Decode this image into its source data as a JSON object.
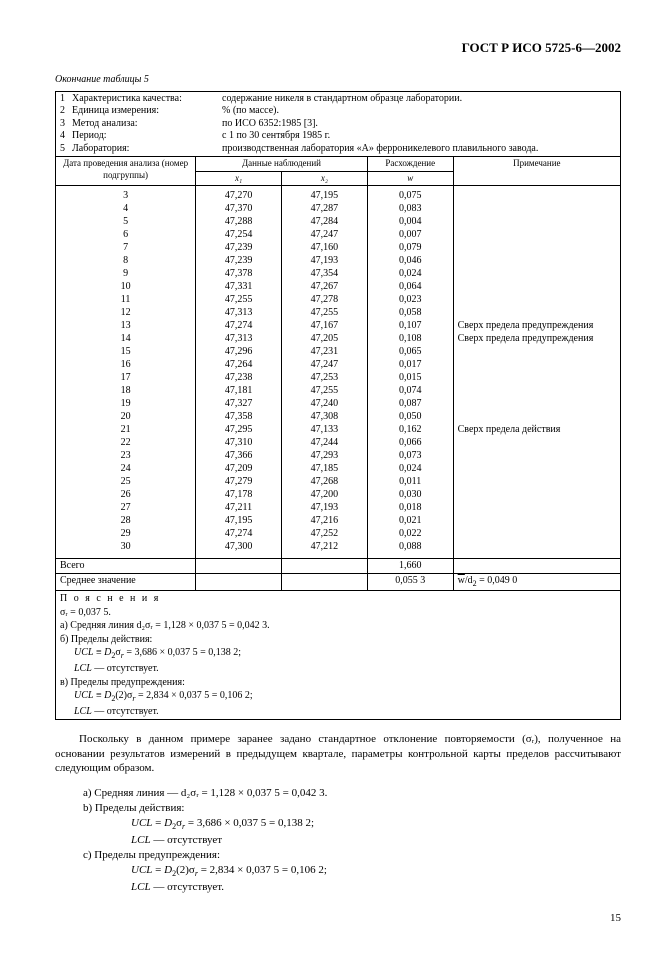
{
  "doc": {
    "header": "ГОСТ Р ИСО 5725-6—2002",
    "caption": "Окончание таблицы 5",
    "page_number": "15"
  },
  "info": {
    "n1": "1",
    "l1": "Характеристика качества:",
    "v1": "содержание никеля в стандартном образце лаборатории.",
    "n2": "2",
    "l2": "Единица измерения:",
    "v2": "% (по массе).",
    "n3": "3",
    "l3": "Метод анализа:",
    "v3": "по ИСО 6352:1985 [3].",
    "n4": "4",
    "l4": "Период:",
    "v4": "с 1 по 30 сентября 1985 г.",
    "n5": "5",
    "l5": "Лаборатория:",
    "v5": "производственная лаборатория «А» ферроникелевого плавильного завода."
  },
  "header_row": {
    "c1": "Дата проведения анализа (номер подгруппы)",
    "c2": "Данные наблюдений",
    "c2a": "x₁",
    "c2b": "x₂",
    "c3": "Расхождение",
    "c3a": "w",
    "c4": "Примечание"
  },
  "rows": [
    {
      "n": "3",
      "x1": "47,270",
      "x2": "47,195",
      "w": "0,075",
      "note": ""
    },
    {
      "n": "4",
      "x1": "47,370",
      "x2": "47,287",
      "w": "0,083",
      "note": ""
    },
    {
      "n": "5",
      "x1": "47,288",
      "x2": "47,284",
      "w": "0,004",
      "note": ""
    },
    {
      "n": "6",
      "x1": "47,254",
      "x2": "47,247",
      "w": "0,007",
      "note": ""
    },
    {
      "n": "7",
      "x1": "47,239",
      "x2": "47,160",
      "w": "0,079",
      "note": ""
    },
    {
      "n": "8",
      "x1": "47,239",
      "x2": "47,193",
      "w": "0,046",
      "note": ""
    },
    {
      "n": "9",
      "x1": "47,378",
      "x2": "47,354",
      "w": "0,024",
      "note": ""
    },
    {
      "n": "10",
      "x1": "47,331",
      "x2": "47,267",
      "w": "0,064",
      "note": ""
    },
    {
      "n": "11",
      "x1": "47,255",
      "x2": "47,278",
      "w": "0,023",
      "note": ""
    },
    {
      "n": "12",
      "x1": "47,313",
      "x2": "47,255",
      "w": "0,058",
      "note": ""
    },
    {
      "n": "13",
      "x1": "47,274",
      "x2": "47,167",
      "w": "0,107",
      "note": "Сверх предела предупреждения"
    },
    {
      "n": "14",
      "x1": "47,313",
      "x2": "47,205",
      "w": "0,108",
      "note": "Сверх предела предупреждения"
    },
    {
      "n": "15",
      "x1": "47,296",
      "x2": "47,231",
      "w": "0,065",
      "note": ""
    },
    {
      "n": "16",
      "x1": "47,264",
      "x2": "47,247",
      "w": "0,017",
      "note": ""
    },
    {
      "n": "17",
      "x1": "47,238",
      "x2": "47,253",
      "w": "0,015",
      "note": ""
    },
    {
      "n": "18",
      "x1": "47,181",
      "x2": "47,255",
      "w": "0,074",
      "note": ""
    },
    {
      "n": "19",
      "x1": "47,327",
      "x2": "47,240",
      "w": "0,087",
      "note": ""
    },
    {
      "n": "20",
      "x1": "47,358",
      "x2": "47,308",
      "w": "0,050",
      "note": ""
    },
    {
      "n": "21",
      "x1": "47,295",
      "x2": "47,133",
      "w": "0,162",
      "note": "Сверх предела действия"
    },
    {
      "n": "22",
      "x1": "47,310",
      "x2": "47,244",
      "w": "0,066",
      "note": ""
    },
    {
      "n": "23",
      "x1": "47,366",
      "x2": "47,293",
      "w": "0,073",
      "note": ""
    },
    {
      "n": "24",
      "x1": "47,209",
      "x2": "47,185",
      "w": "0,024",
      "note": ""
    },
    {
      "n": "25",
      "x1": "47,279",
      "x2": "47,268",
      "w": "0,011",
      "note": ""
    },
    {
      "n": "26",
      "x1": "47,178",
      "x2": "47,200",
      "w": "0,030",
      "note": ""
    },
    {
      "n": "27",
      "x1": "47,211",
      "x2": "47,193",
      "w": "0,018",
      "note": ""
    },
    {
      "n": "28",
      "x1": "47,195",
      "x2": "47,216",
      "w": "0,021",
      "note": ""
    },
    {
      "n": "29",
      "x1": "47,274",
      "x2": "47,252",
      "w": "0,022",
      "note": ""
    },
    {
      "n": "30",
      "x1": "47,300",
      "x2": "47,212",
      "w": "0,088",
      "note": ""
    }
  ],
  "totals": {
    "label_all": "Всего",
    "w_all": "1,660",
    "label_mean": "Среднее значение",
    "w_mean": "0,055 3",
    "mean_note_prefix": "w̅/d₂ = ",
    "mean_note_val": "0,049 0"
  },
  "expl": {
    "title": "П о я с н е н и я",
    "sigma": "σᵣ = 0,037 5.",
    "a": "а) Средняя линия d₂σᵣ = 1,128 × 0,037 5 = 0,042 3.",
    "b": "б) Пределы действия:",
    "b1": "UCL ≡ D₂σᵣ = 3,686 × 0,037 5 = 0,138 2;",
    "b2": "LCL — отсутствует.",
    "c": "в) Пределы предупреждения:",
    "c1": "UCL ≡ D₂(2)σᵣ = 2,834 × 0,037 5 = 0,106 2;",
    "c2": "LCL — отсутствует."
  },
  "after": {
    "para": "Поскольку в данном примере заранее задано стандартное отклонение повторяемости (σᵣ), полученное на основании результатов измерений в предыдущем квартале, параметры контрольной карты пределов рассчитывают следующим образом.",
    "a": "a) Средняя линия — d₂σᵣ = 1,128 × 0,037 5 = 0,042 3.",
    "b": "b) Пределы действия:",
    "b1": "UCL = D₂σᵣ = 3,686 × 0,037 5 = 0,138 2;",
    "b2": "LCL — отсутствует",
    "c": "c) Пределы предупреждения:",
    "c1": "UCL = D₂(2)σᵣ = 2,834 × 0,037 5 = 0,106 2;",
    "c2": "LCL — отсутствует."
  }
}
